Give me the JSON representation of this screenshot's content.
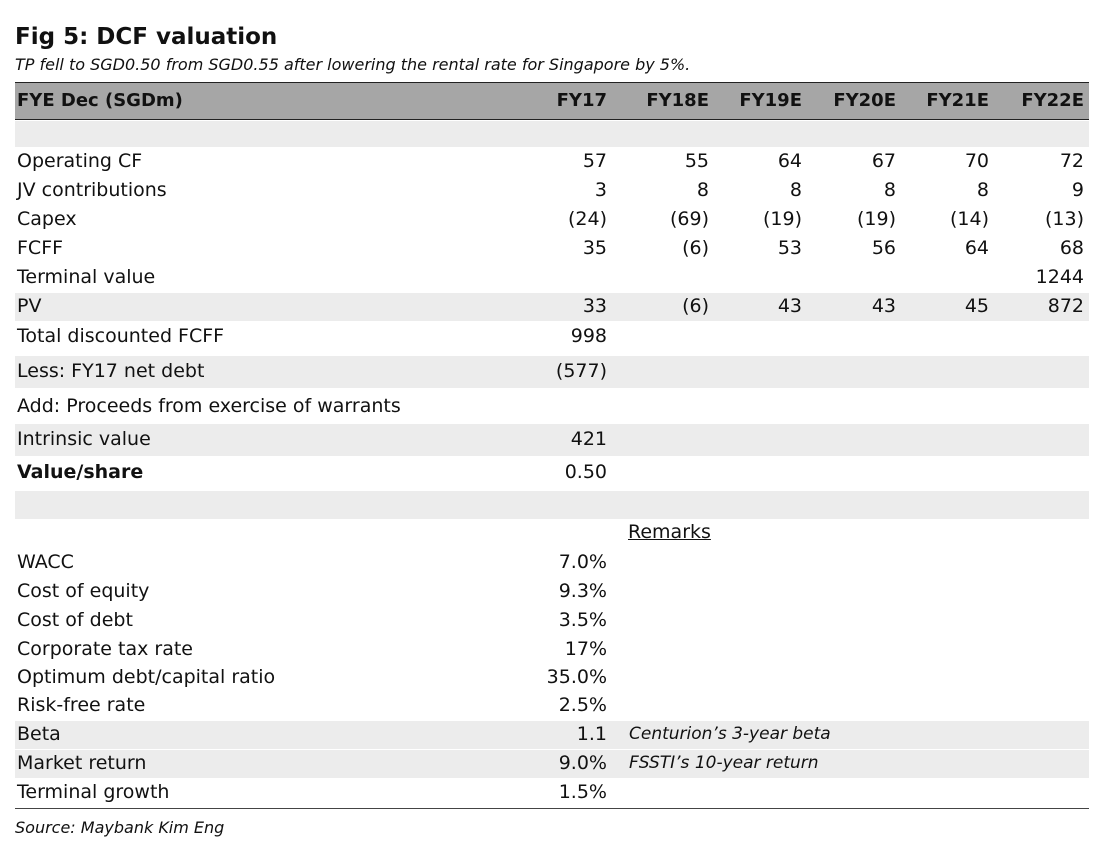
{
  "title": "Fig 5: DCF valuation",
  "subtitle": "TP fell to SGD0.50 from SGD0.55 after lowering the rental rate for Singapore by 5%.",
  "header": {
    "label": "FYE Dec (SGDm)",
    "years": [
      "FY17",
      "FY18E",
      "FY19E",
      "FY20E",
      "FY21E",
      "FY22E"
    ]
  },
  "rows": [
    {
      "label": "Operating CF",
      "values": [
        "57",
        "55",
        "64",
        "67",
        "70",
        "72"
      ]
    },
    {
      "label": "JV contributions",
      "values": [
        "3",
        "8",
        "8",
        "8",
        "8",
        "9"
      ]
    },
    {
      "label": "Capex",
      "values": [
        "(24)",
        "(69)",
        "(19)",
        "(19)",
        "(14)",
        "(13)"
      ]
    },
    {
      "label": "FCFF",
      "values": [
        "35",
        "(6)",
        "53",
        "56",
        "64",
        "68"
      ]
    },
    {
      "label": "Terminal value",
      "values": [
        "",
        "",
        "",
        "",
        "",
        "1244"
      ]
    },
    {
      "label": "PV",
      "values": [
        "33",
        "(6)",
        "43",
        "43",
        "45",
        "872"
      ]
    }
  ],
  "summary": [
    {
      "label": "Total discounted FCFF",
      "value": "998"
    },
    {
      "label": "Less: FY17 net debt",
      "value": "(577)"
    },
    {
      "label": "Add: Proceeds from exercise of warrants",
      "value": ""
    },
    {
      "label": "Intrinsic value",
      "value": "421"
    },
    {
      "label": "Value/share",
      "value": "0.50"
    }
  ],
  "remarks_header": "Remarks",
  "assumptions": [
    {
      "label": "WACC",
      "value": "7.0%",
      "remark": ""
    },
    {
      "label": "Cost of equity",
      "value": "9.3%",
      "remark": ""
    },
    {
      "label": "Cost of debt",
      "value": "3.5%",
      "remark": ""
    },
    {
      "label": "Corporate tax rate",
      "value": "17%",
      "remark": ""
    },
    {
      "label": "Optimum debt/capital ratio",
      "value": "35.0%",
      "remark": ""
    },
    {
      "label": "Risk-free rate",
      "value": "2.5%",
      "remark": ""
    },
    {
      "label": "Beta",
      "value": "1.1",
      "remark": "Centurion’s 3-year beta"
    },
    {
      "label": "Market return",
      "value": "9.0%",
      "remark": "FSSTI’s 10-year return"
    },
    {
      "label": "Terminal growth",
      "value": "1.5%",
      "remark": ""
    }
  ],
  "source": "Source: Maybank Kim Eng"
}
